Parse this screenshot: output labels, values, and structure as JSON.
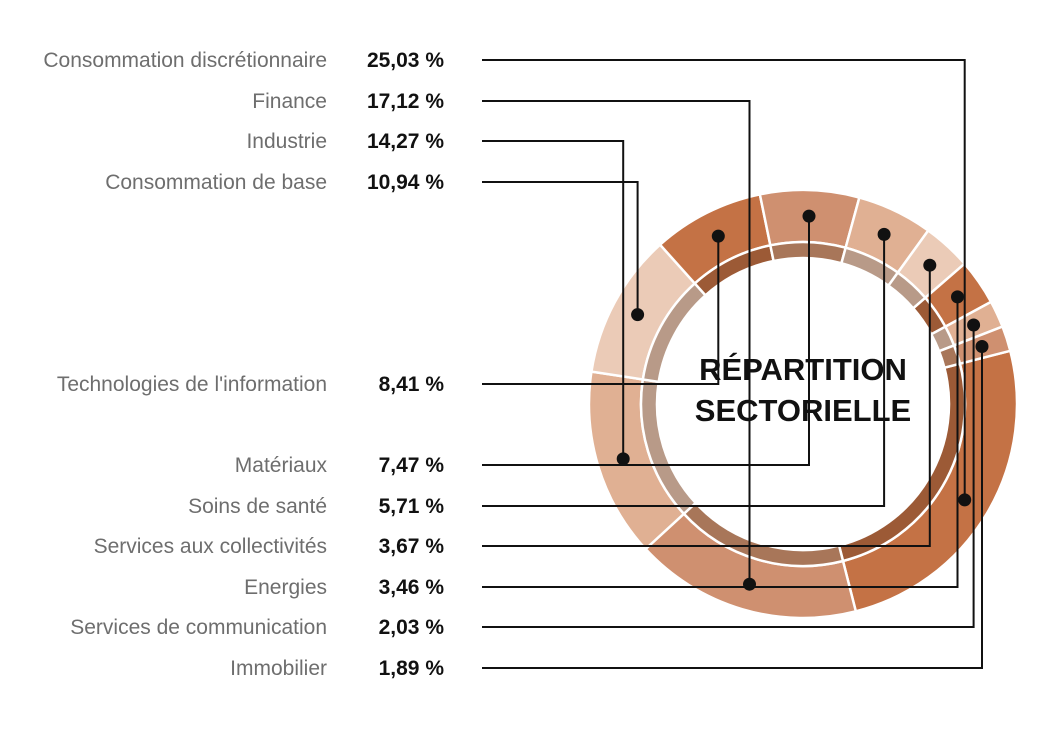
{
  "chart_data": {
    "type": "pie",
    "title": "RÉPARTITION SECTORIELLE",
    "title_lines": [
      "RÉPARTITION",
      "SECTORIELLE"
    ],
    "categories": [
      "Consommation discrétionnaire",
      "Finance",
      "Industrie",
      "Consommation de base",
      "Technologies de l'information",
      "Matériaux",
      "Soins de santé",
      "Services aux collectivités",
      "Energies",
      "Services de communication",
      "Immobilier"
    ],
    "values": [
      25.03,
      17.12,
      14.27,
      10.94,
      8.41,
      7.47,
      5.71,
      3.67,
      3.46,
      2.03,
      1.89
    ],
    "value_labels": [
      "25,03 %",
      "17,12 %",
      "14,27 %",
      "10,94 %",
      "8,41 %",
      "7,47 %",
      "5,71 %",
      "3,67 %",
      "3,46 %",
      "2,03 %",
      "1,89 %"
    ],
    "colors": [
      "#c47245",
      "#cf9070",
      "#e0b093",
      "#ebcbb7",
      "#c47245",
      "#cf9070",
      "#e0b093",
      "#ebcbb7",
      "#c47245",
      "#e0b093",
      "#cf9070"
    ],
    "inner_ring_colors": [
      "#9c5a36",
      "#a87659",
      "#b89a88",
      "#b89a88",
      "#9c5a36",
      "#a87659",
      "#b89a88",
      "#b89a88",
      "#9c5a36",
      "#b89a88",
      "#a87659"
    ],
    "legend": "left"
  }
}
